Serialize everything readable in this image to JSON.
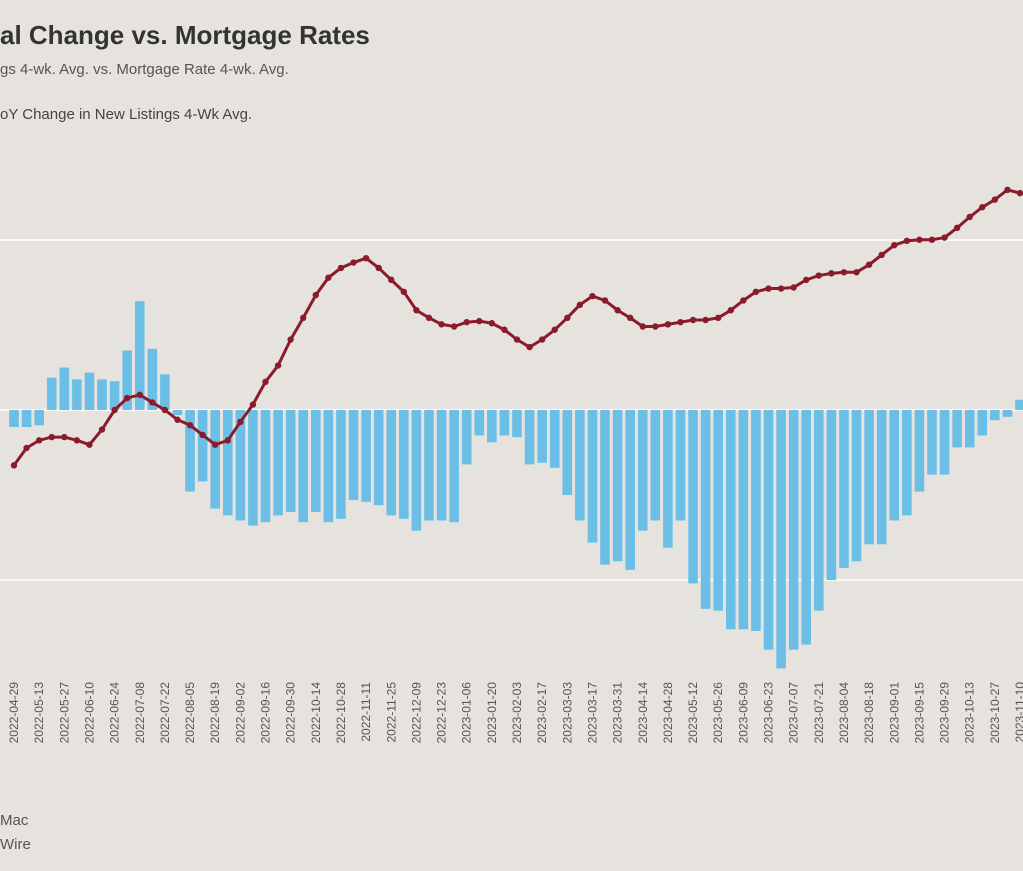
{
  "chart_data": {
    "type": "bar-line",
    "title": "al Change vs. Mortgage Rates",
    "subtitle": "gs 4-wk. Avg. vs. Mortgage Rate 4-wk. Avg.",
    "notes": [
      "Mac",
      "Wire"
    ],
    "categories": [
      "2022-04-29",
      null,
      "2022-05-13",
      null,
      "2022-05-27",
      null,
      "2022-06-10",
      null,
      "2022-06-24",
      null,
      "2022-07-08",
      null,
      "2022-07-22",
      null,
      "2022-08-05",
      null,
      "2022-08-19",
      null,
      "2022-09-02",
      null,
      "2022-09-16",
      null,
      "2022-09-30",
      null,
      "2022-10-14",
      null,
      "2022-10-28",
      null,
      "2022-11-11",
      null,
      "2022-11-25",
      null,
      "2022-12-09",
      null,
      "2022-12-23",
      null,
      "2023-01-06",
      null,
      "2023-01-20",
      null,
      "2023-02-03",
      null,
      "2023-02-17",
      null,
      "2023-03-03",
      null,
      "2023-03-17",
      null,
      "2023-03-31",
      null,
      "2023-04-14",
      null,
      "2023-04-28",
      null,
      "2023-05-12",
      null,
      "2023-05-26",
      null,
      "2023-06-09",
      null,
      "2023-06-23",
      null,
      "2023-07-07",
      null,
      "2023-07-21",
      null,
      "2023-08-04",
      null,
      "2023-08-18",
      null,
      "2023-09-01",
      null,
      "2023-09-15",
      null,
      "2023-09-29",
      null,
      "2023-10-13",
      null,
      "2023-10-27",
      null,
      "2023-11-10"
    ],
    "series": [
      {
        "name": "oY Change in New Listings 4-Wk Avg.",
        "type": "bar",
        "color": "#6bbfe6",
        "values": [
          -1.0,
          -1.0,
          -0.9,
          1.9,
          2.5,
          1.8,
          2.2,
          1.8,
          1.7,
          3.5,
          6.4,
          3.6,
          2.1,
          -0.3,
          -4.8,
          -4.2,
          -5.8,
          -6.2,
          -6.5,
          -6.8,
          -6.6,
          -6.2,
          -6.0,
          -6.6,
          -6.0,
          -6.6,
          -6.4,
          -5.3,
          -5.4,
          -5.6,
          -6.2,
          -6.4,
          -7.1,
          -6.5,
          -6.5,
          -6.6,
          -3.2,
          -1.5,
          -1.9,
          -1.5,
          -1.6,
          -3.2,
          -3.1,
          -3.4,
          -5.0,
          -6.5,
          -7.8,
          -9.1,
          -8.9,
          -9.4,
          -7.1,
          -6.5,
          -8.1,
          -6.5,
          -10.2,
          -11.7,
          -11.8,
          -12.9,
          -12.9,
          -13.0,
          -14.1,
          -15.2,
          -14.1,
          -13.8,
          -11.8,
          -10.0,
          -9.3,
          -8.9,
          -7.9,
          -7.9,
          -6.5,
          -6.2,
          -4.8,
          -3.8,
          -3.8,
          -2.2,
          -2.2,
          -1.5,
          -0.6,
          -0.4,
          0.6
        ]
      },
      {
        "type": "line",
        "axis": "y2",
        "color": "#8b1a2a",
        "values": [
          5.14,
          5.3,
          5.37,
          5.4,
          5.4,
          5.37,
          5.33,
          5.47,
          5.65,
          5.76,
          5.79,
          5.72,
          5.65,
          5.56,
          5.51,
          5.42,
          5.33,
          5.37,
          5.54,
          5.7,
          5.91,
          6.06,
          6.3,
          6.5,
          6.71,
          6.87,
          6.96,
          7.01,
          7.05,
          6.96,
          6.85,
          6.74,
          6.57,
          6.5,
          6.44,
          6.42,
          6.46,
          6.47,
          6.45,
          6.39,
          6.3,
          6.23,
          6.3,
          6.39,
          6.5,
          6.62,
          6.7,
          6.66,
          6.57,
          6.5,
          6.42,
          6.42,
          6.44,
          6.46,
          6.48,
          6.48,
          6.5,
          6.57,
          6.66,
          6.74,
          6.77,
          6.77,
          6.78,
          6.85,
          6.89,
          6.91,
          6.92,
          6.92,
          6.99,
          7.08,
          7.17,
          7.21,
          7.22,
          7.22,
          7.24,
          7.33,
          7.43,
          7.52,
          7.59,
          7.68,
          7.65
        ]
      }
    ],
    "ylim": [
      -15.5,
      15.5
    ],
    "yticks": [
      -10,
      0,
      10
    ],
    "y2lim": [
      3.22,
      8.08
    ],
    "grid": true
  }
}
